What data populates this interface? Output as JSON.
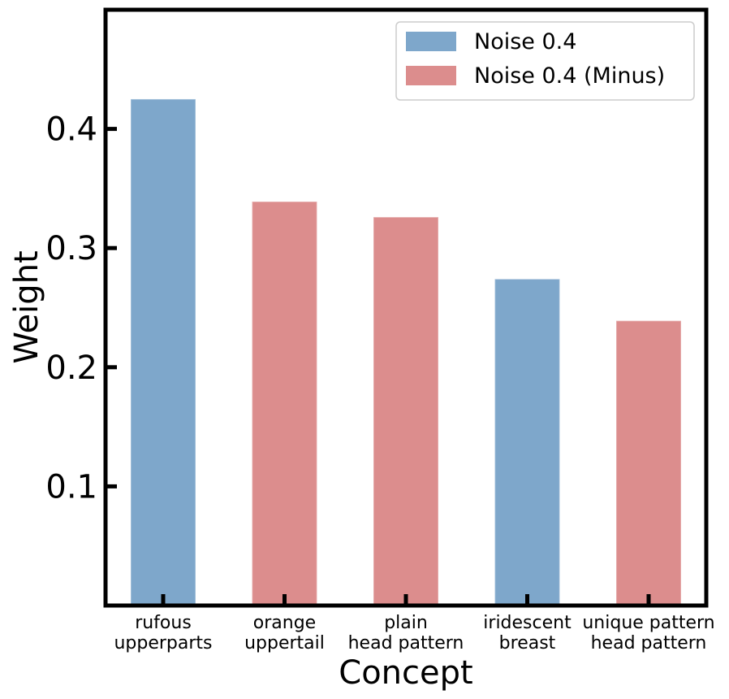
{
  "chart_data": {
    "type": "bar",
    "xlabel": "Concept",
    "ylabel": "Weight",
    "ylim": [
      0,
      0.5
    ],
    "yticks": [
      "0.1",
      "0.2",
      "0.3",
      "0.4"
    ],
    "grid": false,
    "legend_position": "top-right",
    "categories": [
      [
        "rufous",
        "upperparts"
      ],
      [
        "orange",
        "uppertail"
      ],
      [
        "plain",
        "head pattern"
      ],
      [
        "iridescent",
        "breast"
      ],
      [
        "unique pattern",
        "head pattern"
      ]
    ],
    "series": [
      {
        "name": "Noise 0.4",
        "color": "#7ea7cb"
      },
      {
        "name": "Noise 0.4 (Minus)",
        "color": "#dc8d8d"
      }
    ],
    "bars": [
      {
        "value": 0.425,
        "series": 0
      },
      {
        "value": 0.339,
        "series": 1
      },
      {
        "value": 0.326,
        "series": 1
      },
      {
        "value": 0.274,
        "series": 0
      },
      {
        "value": 0.239,
        "series": 1
      }
    ]
  }
}
